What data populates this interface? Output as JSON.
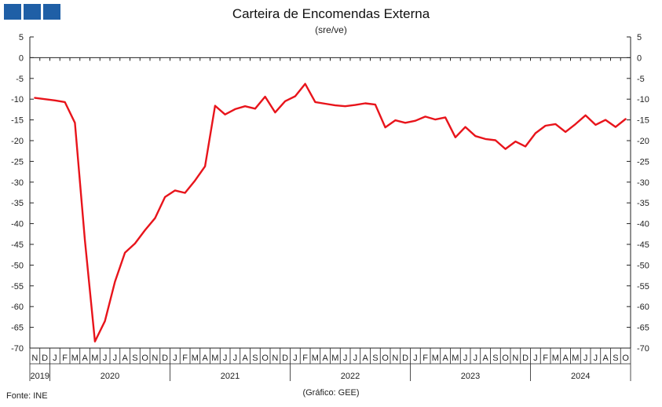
{
  "logo": {
    "color": "#1f5fa6",
    "icon": "institution-logo-blocks"
  },
  "footer": {
    "source": "Fonte: INE",
    "credit": "(Gráfico: GEE)"
  },
  "chart_data": {
    "type": "line",
    "title": "Carteira de Encomendas Externa",
    "subtitle": "(sre/ve)",
    "xlabel": "",
    "ylabel": "",
    "ylim": [
      -70,
      5
    ],
    "yticks": [
      5,
      0,
      -5,
      -10,
      -15,
      -20,
      -25,
      -30,
      -35,
      -40,
      -45,
      -50,
      -55,
      -60,
      -65,
      -70
    ],
    "grid": false,
    "line_color": "#e8141b",
    "month_labels": [
      "N",
      "D",
      "J",
      "F",
      "M",
      "A",
      "M",
      "J",
      "J",
      "A",
      "S",
      "O",
      "N",
      "D",
      "J",
      "F",
      "M",
      "A",
      "M",
      "J",
      "J",
      "A",
      "S",
      "O",
      "N",
      "D",
      "J",
      "F",
      "M",
      "A",
      "M",
      "J",
      "J",
      "A",
      "S",
      "O",
      "N",
      "D",
      "J",
      "F",
      "M",
      "A",
      "M",
      "J",
      "J",
      "A",
      "S",
      "O",
      "N",
      "D",
      "J",
      "F",
      "M",
      "A",
      "M",
      "J",
      "J",
      "A",
      "S",
      "O"
    ],
    "year_labels": [
      {
        "label": "2019",
        "start": 0,
        "end": 1
      },
      {
        "label": "2020",
        "start": 2,
        "end": 13
      },
      {
        "label": "2021",
        "start": 14,
        "end": 25
      },
      {
        "label": "2022",
        "start": 26,
        "end": 37
      },
      {
        "label": "2023",
        "start": 38,
        "end": 49
      },
      {
        "label": "2024",
        "start": 50,
        "end": 59
      }
    ],
    "series": [
      {
        "values": [
          -9.7,
          -10.0,
          -10.3,
          -10.7,
          -15.7,
          -44.0,
          -68.4,
          -63.5,
          -54.0,
          -47.0,
          -44.8,
          -41.6,
          -38.7,
          -33.6,
          -32.0,
          -32.6,
          -29.6,
          -26.2,
          -11.6,
          -13.7,
          -12.4,
          -11.7,
          -12.3,
          -9.4,
          -13.2,
          -10.5,
          -9.3,
          -6.3,
          -10.7,
          -11.1,
          -11.5,
          -11.7,
          -11.4,
          -11.0,
          -11.3,
          -16.8,
          -15.1,
          -15.7,
          -15.2,
          -14.2,
          -14.9,
          -14.4,
          -19.2,
          -16.7,
          -18.9,
          -19.6,
          -19.9,
          -22.0,
          -20.2,
          -21.4,
          -18.2,
          -16.4,
          -16.0,
          -17.9,
          -16.0,
          -13.9,
          -16.2,
          -15.0,
          -16.7,
          -14.8
        ]
      }
    ]
  }
}
